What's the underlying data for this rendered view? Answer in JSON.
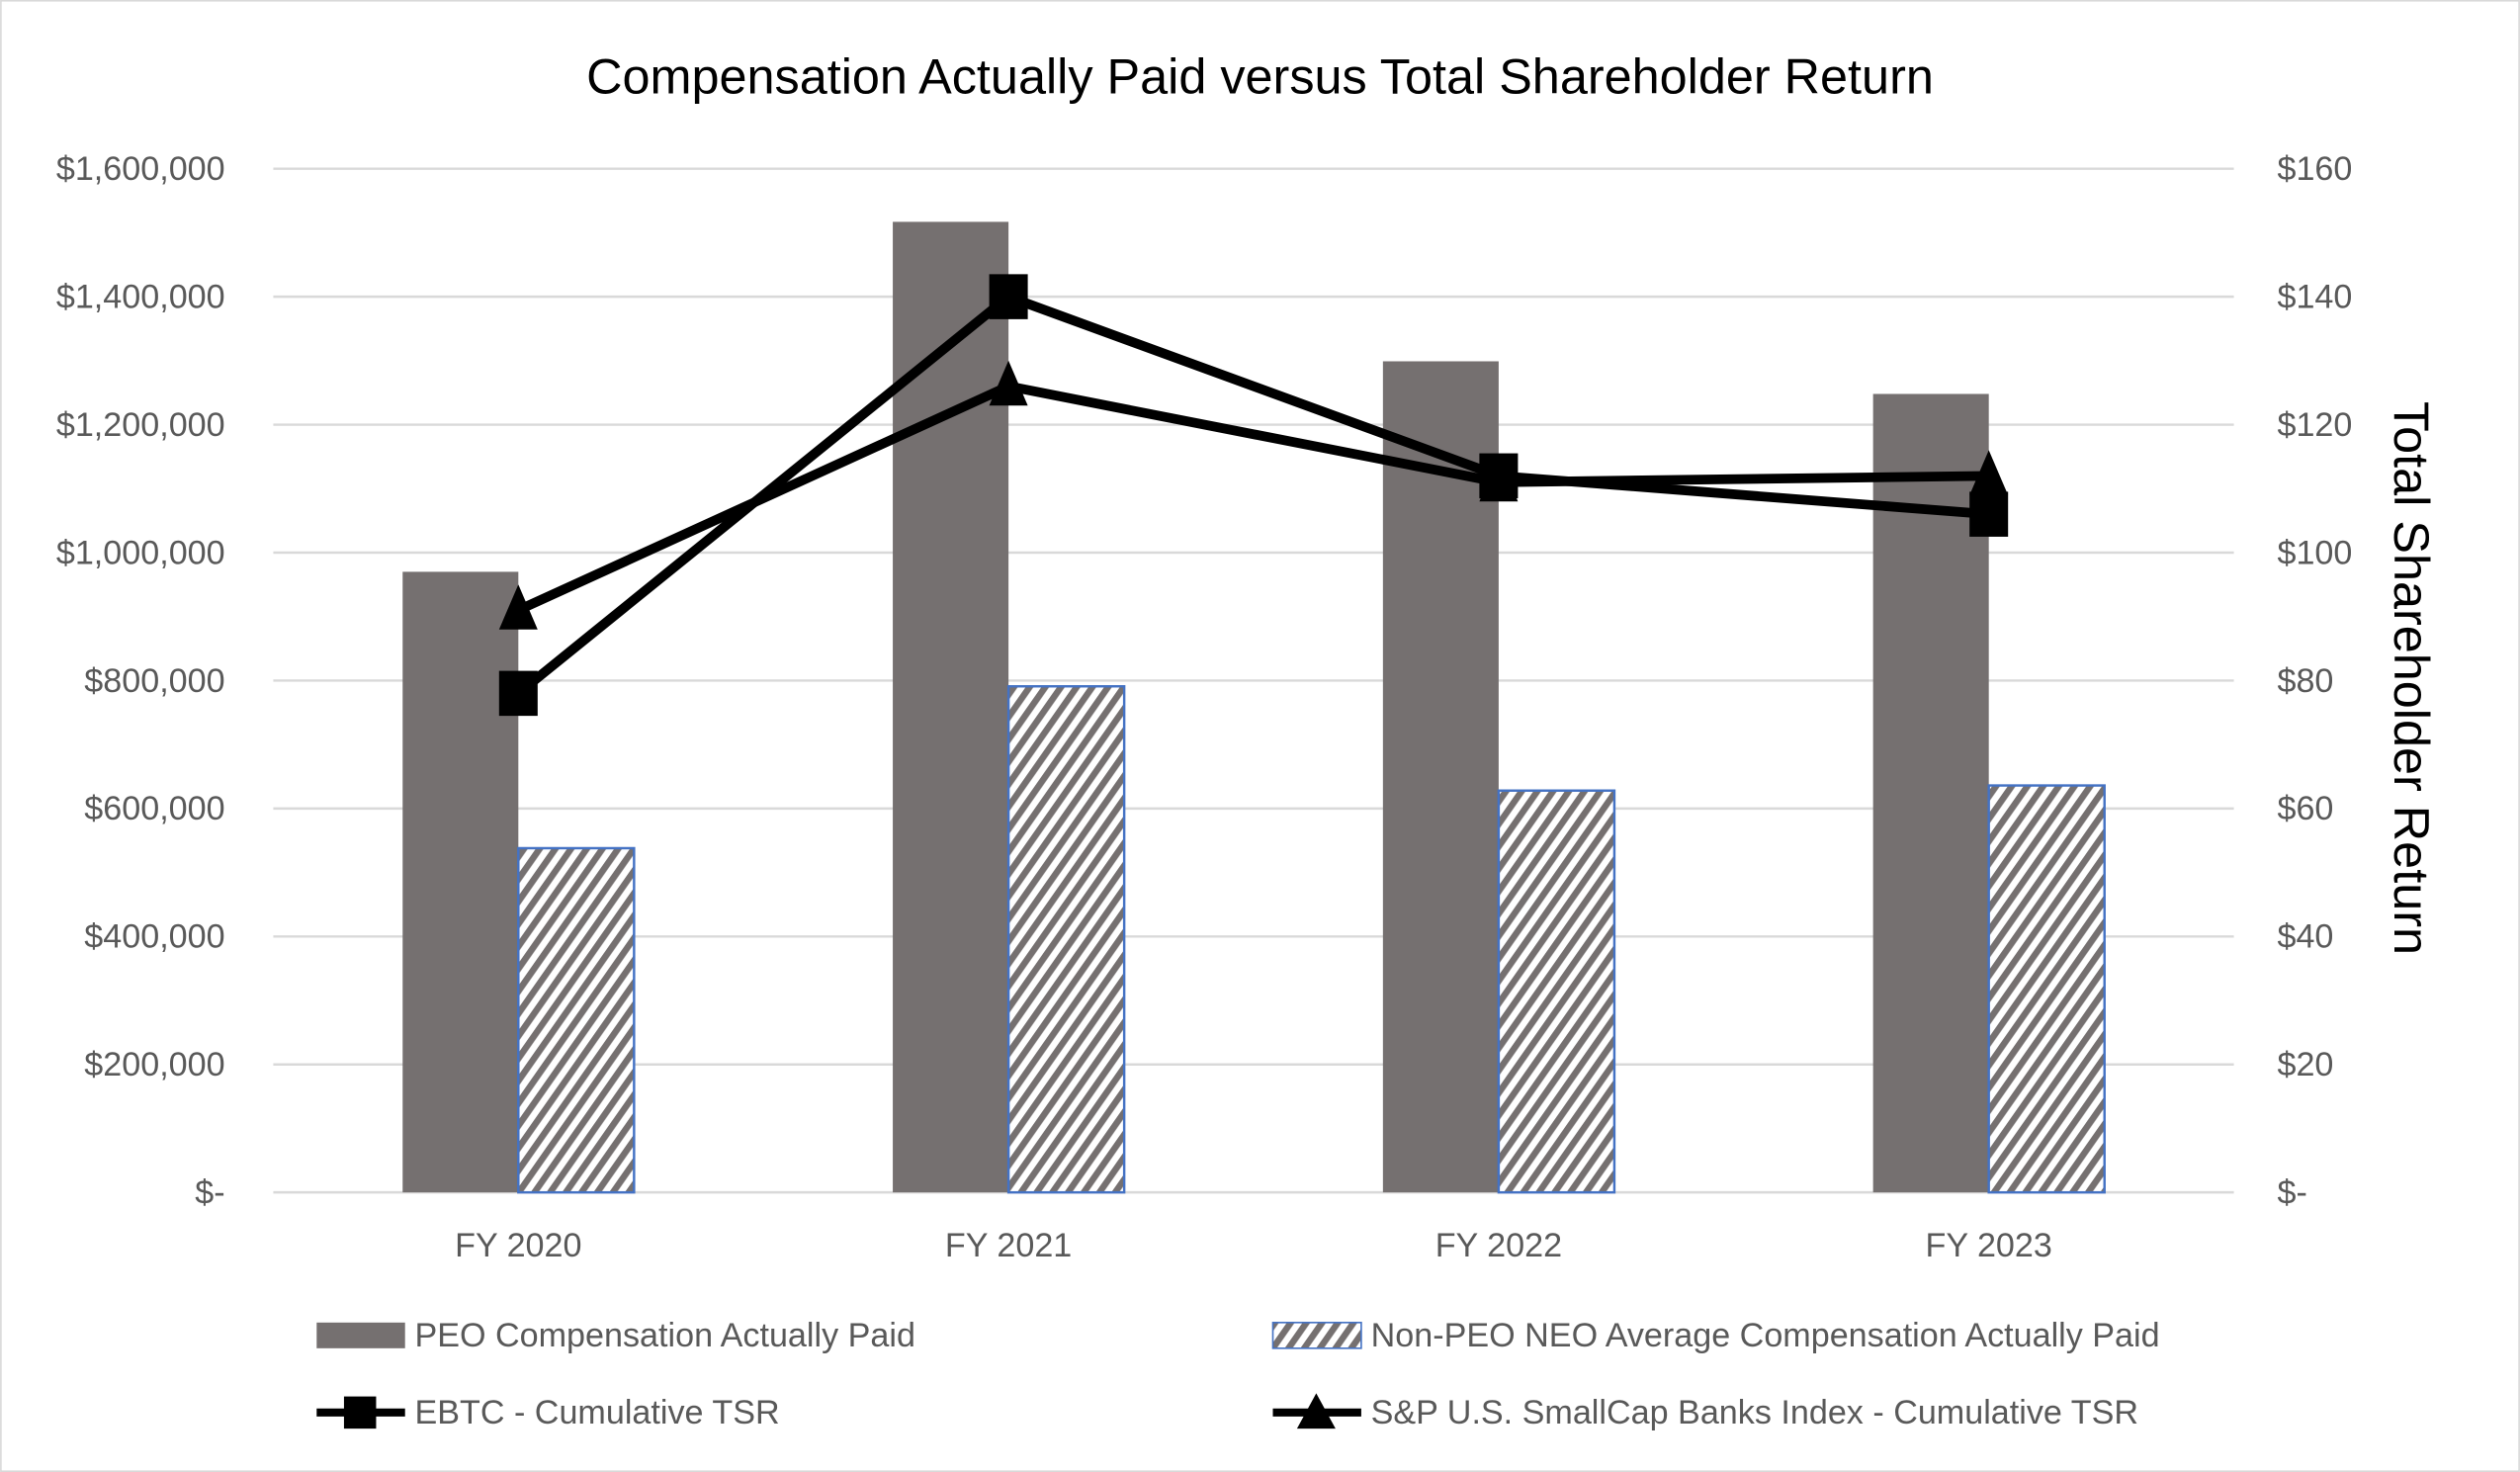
{
  "chart_data": {
    "type": "bar+line",
    "title": "Compensation Actually Paid versus Total Shareholder Return",
    "xlabel": "",
    "ylabel": "",
    "y2label": "Total Shareholder Return",
    "categories": [
      "FY 2020",
      "FY 2021",
      "FY 2022",
      "FY 2023"
    ],
    "ylim": [
      0,
      1600000
    ],
    "y2lim": [
      0,
      160
    ],
    "yticks": [
      "$-",
      "$200,000",
      "$400,000",
      "$600,000",
      "$800,000",
      "$1,000,000",
      "$1,200,000",
      "$1,400,000",
      "$1,600,000"
    ],
    "y2ticks": [
      "$-",
      "$20",
      "$40",
      "$60",
      "$80",
      "$100",
      "$120",
      "$140",
      "$160"
    ],
    "grid": true,
    "legend_position": "bottom",
    "series": [
      {
        "name": "PEO Compensation Actually Paid",
        "type": "bar",
        "axis": "left",
        "color": "#757070",
        "pattern": "solid",
        "values": [
          970000,
          1517000,
          1299000,
          1248000
        ]
      },
      {
        "name": "Non-PEO NEO Average Compensation Actually Paid",
        "type": "bar",
        "axis": "left",
        "color": "#757070",
        "pattern": "diagonal-hatch",
        "border": "#4472C4",
        "values": [
          538000,
          791000,
          628000,
          636000
        ]
      },
      {
        "name": "EBTC - Cumulative TSR",
        "type": "line",
        "axis": "right",
        "color": "#000000",
        "marker": "square",
        "values": [
          78,
          140,
          112,
          106
        ]
      },
      {
        "name": "S&P U.S. SmallCap Banks Index - Cumulative TSR",
        "type": "line",
        "axis": "right",
        "color": "#000000",
        "marker": "triangle",
        "values": [
          91,
          126,
          111,
          112
        ]
      }
    ]
  }
}
